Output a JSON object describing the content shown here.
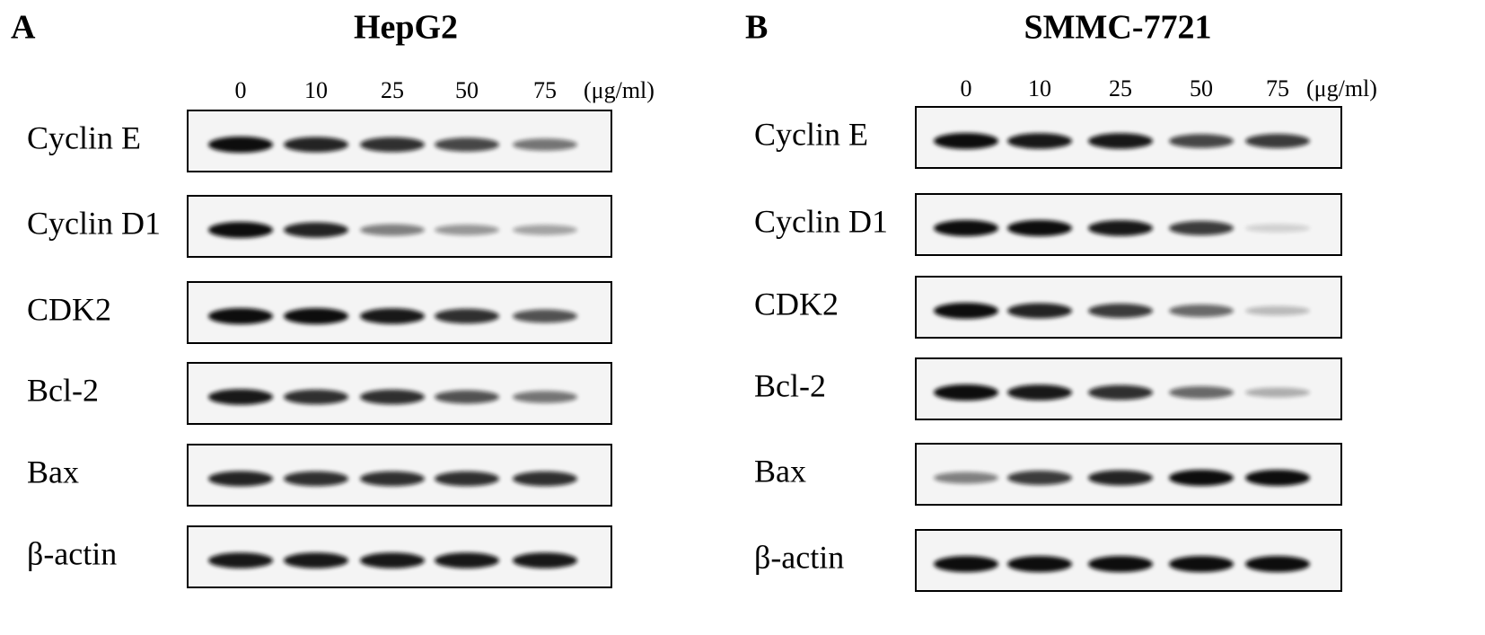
{
  "panels": [
    {
      "letter": "A",
      "title": "HepG2",
      "lanes": [
        "0",
        "10",
        "25",
        "50",
        "75"
      ],
      "unit": "(μg/ml)",
      "rows": [
        "Cyclin E",
        "Cyclin D1",
        "CDK2",
        "Bcl-2",
        "Bax",
        "β-actin"
      ]
    },
    {
      "letter": "B",
      "title": "SMMC-7721",
      "lanes": [
        "0",
        "10",
        "25",
        "50",
        "75"
      ],
      "unit": "(μg/ml)",
      "rows": [
        "Cyclin E",
        "Cyclin D1",
        "CDK2",
        "Bcl-2",
        "Bax",
        "β-actin"
      ]
    }
  ]
}
